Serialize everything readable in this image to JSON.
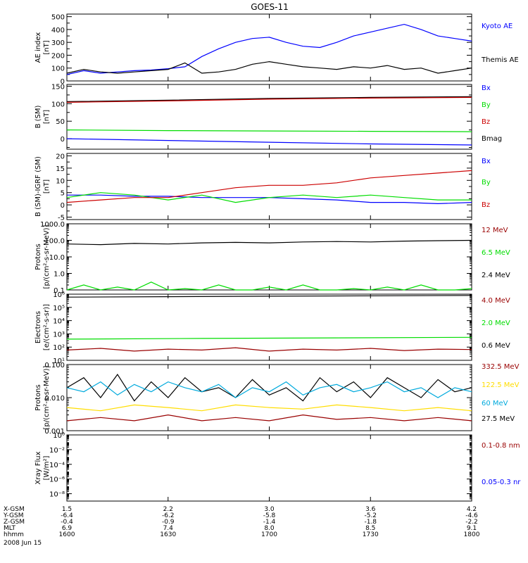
{
  "title": "GOES-11",
  "colors": {
    "black": "#000000",
    "blue": "#0000ff",
    "red": "#cc0000",
    "green": "#00dd00",
    "cyan": "#00aadd",
    "yellow": "#ffdd00",
    "darkred": "#990000"
  },
  "chart_data": [
    {
      "type": "line",
      "ylabel": [
        "AE index",
        "[nT]"
      ],
      "ylim": [
        0,
        520
      ],
      "ticks": [
        {
          "v": 0,
          "label": "0"
        },
        {
          "v": 100,
          "label": "100"
        },
        {
          "v": 200,
          "label": "200"
        },
        {
          "v": 300,
          "label": "300"
        },
        {
          "v": 400,
          "label": "400"
        },
        {
          "v": 500,
          "label": "500"
        }
      ],
      "minor": [
        50,
        150,
        250,
        350,
        450
      ],
      "legend": [
        {
          "text": "Kyoto AE",
          "color": "blue"
        },
        {
          "text": "Themis AE",
          "color": "black"
        }
      ],
      "series": [
        {
          "name": "Kyoto AE",
          "color": "blue",
          "x": [
            0,
            5,
            10,
            15,
            20,
            25,
            30,
            35,
            40,
            45,
            50,
            55,
            60,
            65,
            70,
            75,
            80,
            85,
            90,
            95,
            100,
            105,
            110,
            115,
            120
          ],
          "y": [
            50,
            80,
            60,
            70,
            80,
            85,
            95,
            110,
            190,
            250,
            300,
            330,
            340,
            300,
            270,
            260,
            300,
            350,
            380,
            410,
            440,
            400,
            350,
            330,
            310
          ]
        },
        {
          "name": "Themis AE",
          "color": "black",
          "x": [
            0,
            5,
            10,
            15,
            20,
            25,
            30,
            35,
            40,
            45,
            50,
            55,
            60,
            65,
            70,
            75,
            80,
            85,
            90,
            95,
            100,
            105,
            110,
            115,
            120
          ],
          "y": [
            60,
            90,
            70,
            60,
            70,
            80,
            90,
            140,
            60,
            70,
            90,
            130,
            150,
            130,
            110,
            100,
            90,
            110,
            100,
            120,
            90,
            100,
            60,
            80,
            100
          ]
        }
      ]
    },
    {
      "type": "line",
      "ylabel": [
        "B (SM)",
        "[nT]"
      ],
      "ylim": [
        -30,
        155
      ],
      "ticks": [
        {
          "v": 0,
          "label": "0"
        },
        {
          "v": 50,
          "label": "50"
        },
        {
          "v": 100,
          "label": "100"
        },
        {
          "v": 150,
          "label": "150"
        }
      ],
      "minor": [
        -25,
        25,
        75,
        125
      ],
      "legend": [
        {
          "text": "Bx",
          "color": "blue"
        },
        {
          "text": "By",
          "color": "green"
        },
        {
          "text": "Bz",
          "color": "red"
        },
        {
          "text": "Bmag",
          "color": "black"
        }
      ],
      "series": [
        {
          "name": "Bmag",
          "color": "black",
          "x": [
            0,
            30,
            60,
            90,
            120
          ],
          "y": [
            106,
            110,
            115,
            118,
            120
          ]
        },
        {
          "name": "Bz",
          "color": "red",
          "x": [
            0,
            30,
            60,
            90,
            120
          ],
          "y": [
            104,
            108,
            113,
            116,
            118
          ]
        },
        {
          "name": "By",
          "color": "green",
          "x": [
            0,
            30,
            60,
            90,
            120
          ],
          "y": [
            25,
            23,
            22,
            21,
            20
          ]
        },
        {
          "name": "Bx",
          "color": "blue",
          "x": [
            0,
            30,
            60,
            90,
            120
          ],
          "y": [
            0,
            -5,
            -10,
            -15,
            -18
          ]
        }
      ]
    },
    {
      "type": "line",
      "ylabel": [
        "B (SM)-IGRF (SM)",
        "[nT]"
      ],
      "ylim": [
        -6,
        21
      ],
      "ticks": [
        {
          "v": -5,
          "label": "-5"
        },
        {
          "v": 0,
          "label": "0"
        },
        {
          "v": 5,
          "label": "5"
        },
        {
          "v": 10,
          "label": "10"
        },
        {
          "v": 15,
          "label": "15"
        },
        {
          "v": 20,
          "label": "20"
        }
      ],
      "minor": [
        -2.5,
        2.5,
        7.5,
        12.5,
        17.5
      ],
      "legend": [
        {
          "text": "Bx",
          "color": "blue"
        },
        {
          "text": "By",
          "color": "green"
        },
        {
          "text": "Bz",
          "color": "red"
        }
      ],
      "series": [
        {
          "name": "Bx",
          "color": "blue",
          "x": [
            0,
            10,
            20,
            30,
            40,
            50,
            60,
            70,
            80,
            90,
            100,
            110,
            120
          ],
          "y": [
            4,
            4,
            3.5,
            3.5,
            3,
            3,
            3,
            2.5,
            2,
            1,
            1,
            0.5,
            1
          ]
        },
        {
          "name": "By",
          "color": "green",
          "x": [
            0,
            10,
            20,
            30,
            40,
            50,
            60,
            70,
            80,
            90,
            100,
            110,
            120
          ],
          "y": [
            3,
            5,
            4,
            2,
            4,
            1,
            3,
            4,
            3,
            4,
            3,
            2,
            2
          ]
        },
        {
          "name": "Bz",
          "color": "red",
          "x": [
            0,
            10,
            20,
            30,
            40,
            50,
            60,
            70,
            80,
            90,
            100,
            110,
            120
          ],
          "y": [
            1,
            2,
            3,
            3,
            5,
            7,
            8,
            8,
            9,
            11,
            12,
            13,
            14
          ]
        }
      ]
    },
    {
      "type": "line",
      "ylabel": [
        "Protons",
        "[p/(cm²-s-sr-MeV)]"
      ],
      "log": true,
      "ylim": [
        0.1,
        1000
      ],
      "ticks": [
        {
          "v": 0.1,
          "label": "0.1"
        },
        {
          "v": 1,
          "label": "1.0"
        },
        {
          "v": 10,
          "label": "10.0"
        },
        {
          "v": 100,
          "label": "100.0"
        },
        {
          "v": 1000,
          "label": "1000.0"
        }
      ],
      "legend": [
        {
          "text": "12 MeV",
          "color": "darkred"
        },
        {
          "text": "6.5 MeV",
          "color": "green"
        },
        {
          "text": "2.4 MeV",
          "color": "black"
        }
      ],
      "series": [
        {
          "name": "2.4 MeV",
          "color": "black",
          "x": [
            0,
            10,
            20,
            30,
            40,
            50,
            60,
            70,
            80,
            90,
            100,
            110,
            120
          ],
          "y": [
            60,
            55,
            65,
            60,
            70,
            75,
            70,
            80,
            85,
            80,
            90,
            95,
            100
          ]
        },
        {
          "name": "6.5 MeV",
          "color": "green",
          "x": [
            0,
            5,
            10,
            15,
            20,
            25,
            30,
            35,
            40,
            45,
            50,
            55,
            60,
            65,
            70,
            75,
            80,
            85,
            90,
            95,
            100,
            105,
            110,
            115,
            120
          ],
          "y": [
            0.1,
            0.2,
            0.1,
            0.15,
            0.1,
            0.3,
            0.1,
            0.12,
            0.1,
            0.2,
            0.1,
            0.1,
            0.15,
            0.1,
            0.2,
            0.1,
            0.1,
            0.12,
            0.1,
            0.15,
            0.1,
            0.2,
            0.1,
            0.1,
            0.12
          ]
        }
      ]
    },
    {
      "type": "line",
      "ylabel": [
        "Electrons",
        "[e/(cm²-s-sr)]"
      ],
      "log": true,
      "ylim": [
        10,
        1000000
      ],
      "ticks": [
        {
          "v": 10,
          "label": "10¹"
        },
        {
          "v": 100,
          "label": "10²"
        },
        {
          "v": 1000,
          "label": "10³"
        },
        {
          "v": 10000,
          "label": "10⁴"
        },
        {
          "v": 100000,
          "label": "10⁵"
        },
        {
          "v": 1000000,
          "label": "10⁶"
        }
      ],
      "legend": [
        {
          "text": "4.0 MeV",
          "color": "darkred"
        },
        {
          "text": "2.0 MeV",
          "color": "green"
        },
        {
          "text": "0.6 MeV",
          "color": "black"
        }
      ],
      "series": [
        {
          "name": "0.6 MeV",
          "color": "black",
          "x": [
            0,
            60,
            120
          ],
          "y": [
            600000,
            700000,
            800000
          ]
        },
        {
          "name": "2.0 MeV",
          "color": "green",
          "x": [
            0,
            40,
            80,
            120
          ],
          "y": [
            400,
            450,
            500,
            550
          ]
        },
        {
          "name": "4.0 MeV",
          "color": "darkred",
          "x": [
            0,
            10,
            20,
            30,
            40,
            50,
            60,
            70,
            80,
            90,
            100,
            110,
            120
          ],
          "y": [
            60,
            80,
            50,
            70,
            60,
            90,
            50,
            70,
            60,
            80,
            55,
            70,
            65
          ]
        }
      ]
    },
    {
      "type": "line",
      "ylabel": [
        "Protons",
        "[p/(cm²-s-sr-MeV)]"
      ],
      "log": true,
      "ylim": [
        0.001,
        0.1
      ],
      "ticks": [
        {
          "v": 0.001,
          "label": "0.001"
        },
        {
          "v": 0.01,
          "label": "0.010"
        },
        {
          "v": 0.1,
          "label": "0.100"
        }
      ],
      "legend": [
        {
          "text": "332.5 MeV",
          "color": "darkred"
        },
        {
          "text": "122.5 MeV",
          "color": "yellow"
        },
        {
          "text": "60 MeV",
          "color": "cyan"
        },
        {
          "text": "27.5 MeV",
          "color": "black"
        }
      ],
      "series": [
        {
          "name": "27.5 MeV",
          "color": "black",
          "x": [
            0,
            5,
            10,
            15,
            20,
            25,
            30,
            35,
            40,
            45,
            50,
            55,
            60,
            65,
            70,
            75,
            80,
            85,
            90,
            95,
            100,
            105,
            110,
            115,
            120
          ],
          "y": [
            0.02,
            0.04,
            0.01,
            0.05,
            0.008,
            0.03,
            0.01,
            0.04,
            0.015,
            0.02,
            0.01,
            0.035,
            0.012,
            0.02,
            0.008,
            0.04,
            0.015,
            0.03,
            0.01,
            0.04,
            0.02,
            0.01,
            0.035,
            0.015,
            0.02
          ]
        },
        {
          "name": "60 MeV",
          "color": "cyan",
          "x": [
            0,
            5,
            10,
            15,
            20,
            25,
            30,
            35,
            40,
            45,
            50,
            55,
            60,
            65,
            70,
            75,
            80,
            85,
            90,
            95,
            100,
            105,
            110,
            115,
            120
          ],
          "y": [
            0.02,
            0.015,
            0.03,
            0.012,
            0.025,
            0.015,
            0.03,
            0.02,
            0.015,
            0.025,
            0.01,
            0.02,
            0.015,
            0.03,
            0.012,
            0.02,
            0.025,
            0.015,
            0.02,
            0.03,
            0.015,
            0.02,
            0.01,
            0.02,
            0.015
          ]
        },
        {
          "name": "122.5 MeV",
          "color": "yellow",
          "x": [
            0,
            10,
            20,
            30,
            40,
            50,
            60,
            70,
            80,
            90,
            100,
            110,
            120
          ],
          "y": [
            0.005,
            0.004,
            0.006,
            0.005,
            0.004,
            0.006,
            0.005,
            0.0045,
            0.006,
            0.005,
            0.004,
            0.005,
            0.004
          ]
        },
        {
          "name": "332.5 MeV",
          "color": "darkred",
          "x": [
            0,
            10,
            20,
            30,
            40,
            50,
            60,
            70,
            80,
            90,
            100,
            110,
            120
          ],
          "y": [
            0.002,
            0.0025,
            0.002,
            0.003,
            0.002,
            0.0025,
            0.002,
            0.003,
            0.0022,
            0.0025,
            0.002,
            0.0025,
            0.002
          ]
        }
      ]
    },
    {
      "type": "line",
      "ylabel": [
        "Xray Flux",
        "[W/m²]"
      ],
      "log": true,
      "ylim": [
        1e-09,
        1
      ],
      "ticks": [
        {
          "v": 1e-08,
          "label": "10⁻⁸"
        },
        {
          "v": 1e-06,
          "label": "10⁻⁶"
        },
        {
          "v": 0.0001,
          "label": "10⁻⁴"
        },
        {
          "v": 0.01,
          "label": "10⁻²"
        },
        {
          "v": 1,
          "label": "10⁰"
        }
      ],
      "legend": [
        {
          "text": "0.1-0.8 nm",
          "color": "darkred"
        },
        {
          "text": "0.05-0.3 nr",
          "color": "blue"
        }
      ],
      "series": []
    }
  ],
  "xaxis": {
    "xlim": [
      0,
      120
    ],
    "ticks": [
      0,
      30,
      60,
      90,
      120
    ],
    "rows": [
      {
        "label": "X-GSM",
        "values": [
          "1.5",
          "2.2",
          "3.0",
          "3.6",
          "4.2"
        ]
      },
      {
        "label": "Y-GSM",
        "values": [
          "-6.4",
          "-6.2",
          "-5.8",
          "-5.2",
          "-4.6"
        ]
      },
      {
        "label": "Z-GSM",
        "values": [
          "-0.4",
          "-0.9",
          "-1.4",
          "-1.8",
          "-2.2"
        ]
      },
      {
        "label": "MLT",
        "values": [
          "6.9",
          "7.4",
          "8.0",
          "8.5",
          "9.1"
        ]
      },
      {
        "label": "hhmm",
        "values": [
          "1600",
          "1630",
          "1700",
          "1730",
          "1800"
        ]
      }
    ],
    "date": "2008 Jun 15"
  }
}
